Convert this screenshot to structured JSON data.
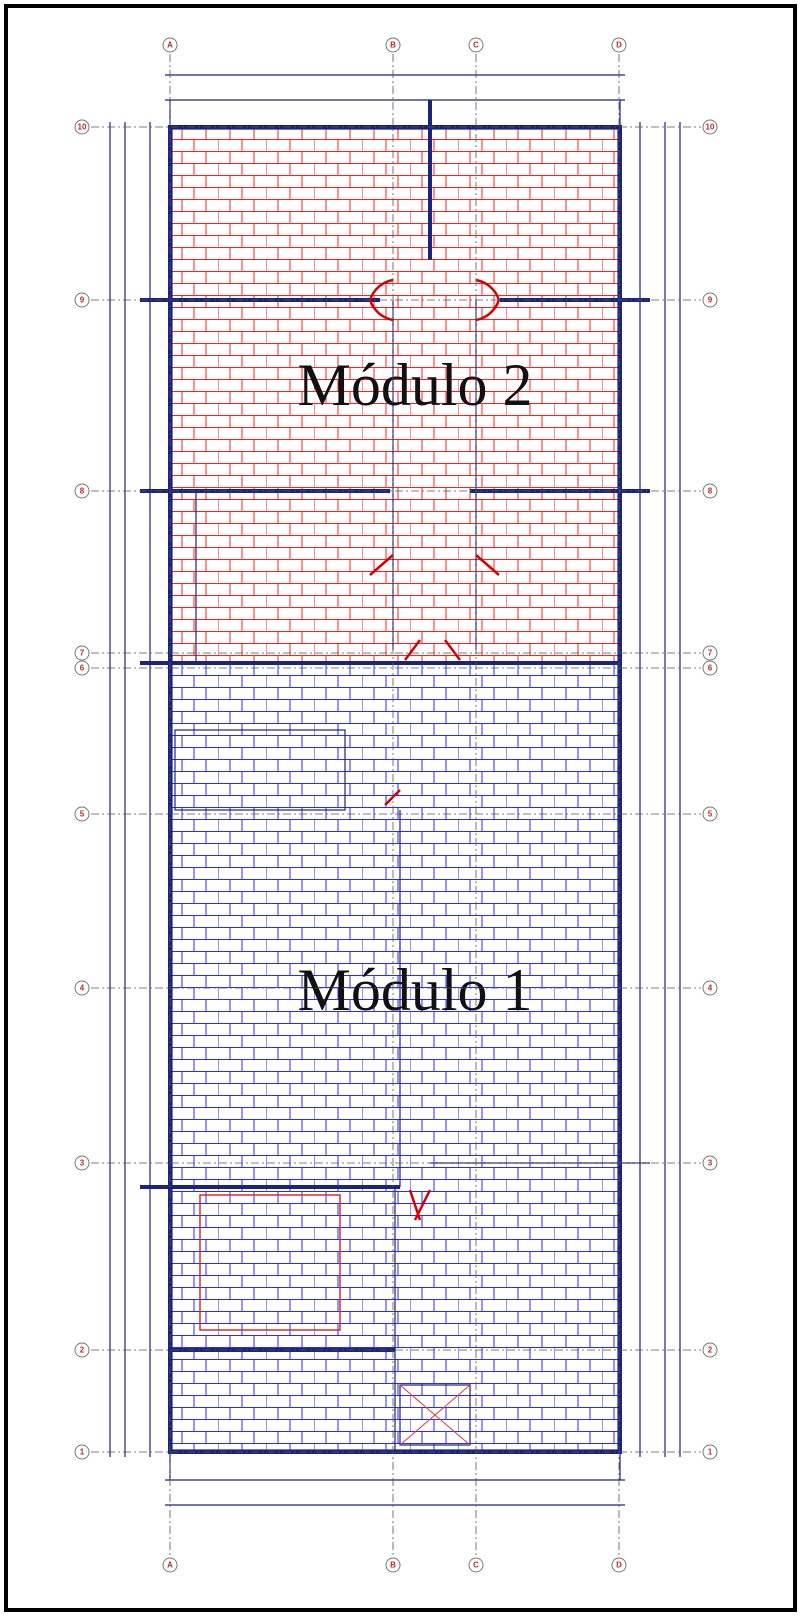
{
  "modules": [
    {
      "label": "Módulo 2"
    },
    {
      "label": "Módulo 1"
    }
  ],
  "grid_columns": [
    "A",
    "B",
    "C",
    "D"
  ],
  "grid_rows": [
    "10",
    "9",
    "8",
    "7",
    "6",
    "5",
    "4",
    "3",
    "2",
    "1"
  ]
}
